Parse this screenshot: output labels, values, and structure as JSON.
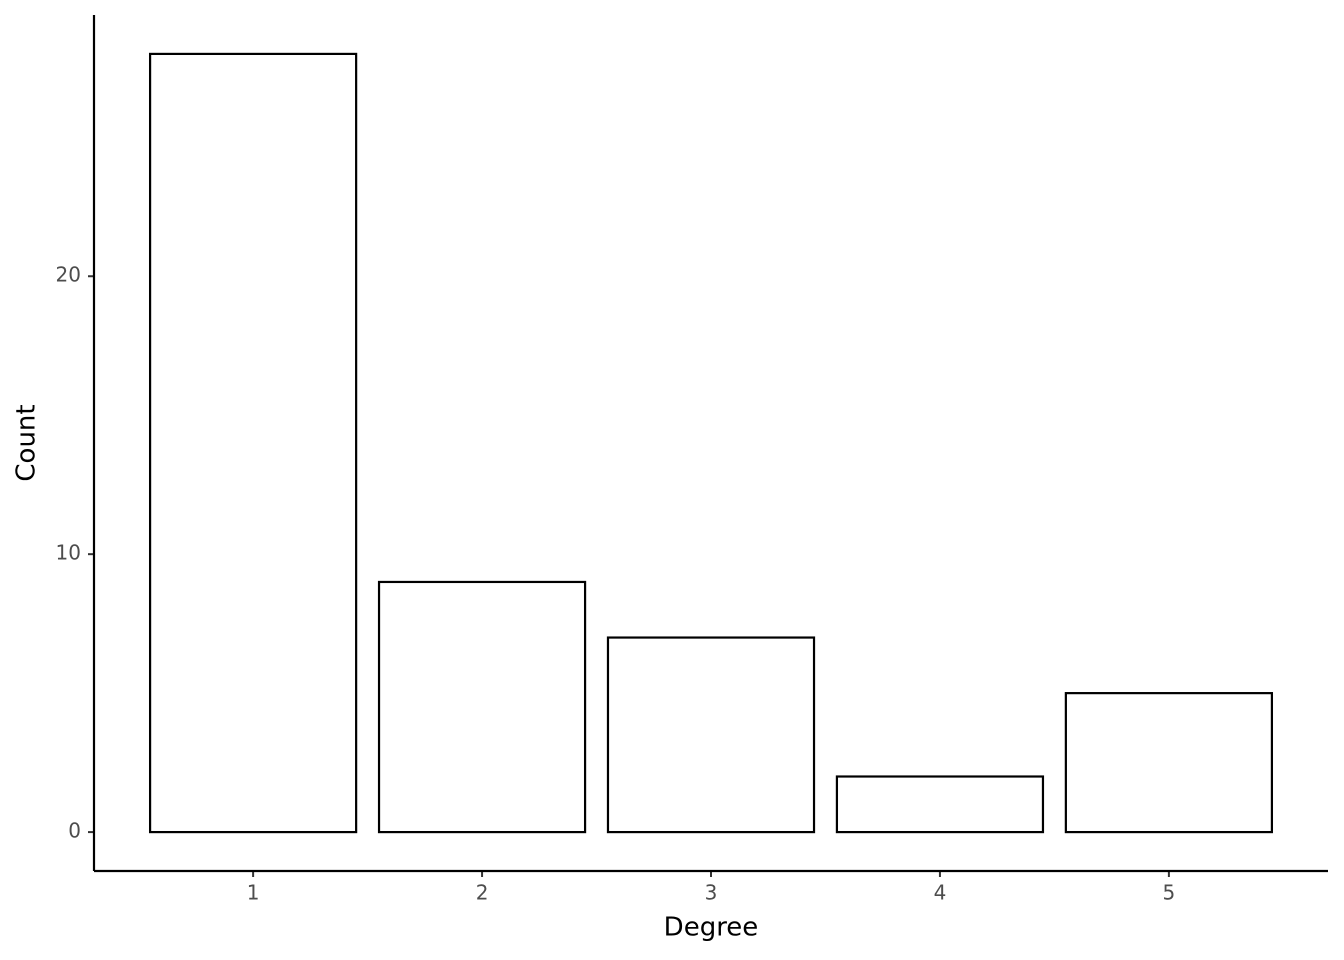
{
  "chart_data": {
    "type": "bar",
    "x_label": "Degree",
    "y_label": "Count",
    "x": [
      1,
      2,
      3,
      4,
      5
    ],
    "values": [
      28,
      9,
      7,
      2,
      5
    ],
    "color": "#ffffff",
    "edge_color": "#000000",
    "xlim": [
      0.305,
      5.695
    ],
    "xticks": [
      1,
      2,
      3,
      4,
      5
    ],
    "ylim": [
      -1.4,
      29.4
    ],
    "yticks": [
      0,
      10,
      20
    ],
    "grid": false
  }
}
